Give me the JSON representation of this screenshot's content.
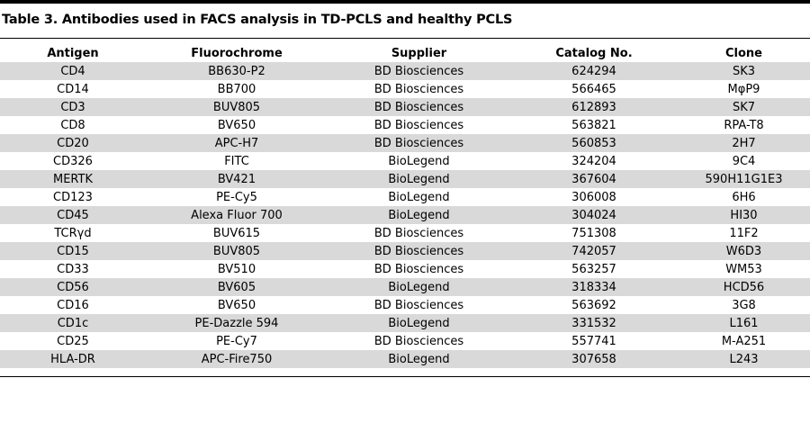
{
  "title": "Table 3. Antibodies used in FACS analysis in TD-PCLS and healthy PCLS",
  "columns": [
    "Antigen",
    "Fluorochrome",
    "Supplier",
    "Catalog No.",
    "Clone"
  ],
  "rows": [
    [
      "CD4",
      "BB630-P2",
      "BD Biosciences",
      "624294",
      "SK3"
    ],
    [
      "CD14",
      "BB700",
      "BD Biosciences",
      "566465",
      "MφP9"
    ],
    [
      "CD3",
      "BUV805",
      "BD Biosciences",
      "612893",
      "SK7"
    ],
    [
      "CD8",
      "BV650",
      "BD Biosciences",
      "563821",
      "RPA-T8"
    ],
    [
      "CD20",
      "APC-H7",
      "BD Biosciences",
      "560853",
      "2H7"
    ],
    [
      "CD326",
      "FITC",
      "BioLegend",
      "324204",
      "9C4"
    ],
    [
      "MERTK",
      "BV421",
      "BioLegend",
      "367604",
      "590H11G1E3"
    ],
    [
      "CD123",
      "PE-Cy5",
      "BioLegend",
      "306008",
      "6H6"
    ],
    [
      "CD45",
      "Alexa Fluor 700",
      "BioLegend",
      "304024",
      "HI30"
    ],
    [
      "TCRγd",
      "BUV615",
      "BD Biosciences",
      "751308",
      "11F2"
    ],
    [
      "CD15",
      "BUV805",
      "BD Biosciences",
      "742057",
      "W6D3"
    ],
    [
      "CD33",
      "BV510",
      "BD Biosciences",
      "563257",
      "WM53"
    ],
    [
      "CD56",
      "BV605",
      "BioLegend",
      "318334",
      "HCD56"
    ],
    [
      "CD16",
      "BV650",
      "BD Biosciences",
      "563692",
      "3G8"
    ],
    [
      "CD1c",
      "PE-Dazzle 594",
      "BioLegend",
      "331532",
      "L161"
    ],
    [
      "CD25",
      "PE-Cy7",
      "BD Biosciences",
      "557741",
      "M-A251"
    ],
    [
      "HLA-DR",
      "APC-Fire750",
      "BioLegend",
      "307658",
      "L243"
    ]
  ]
}
